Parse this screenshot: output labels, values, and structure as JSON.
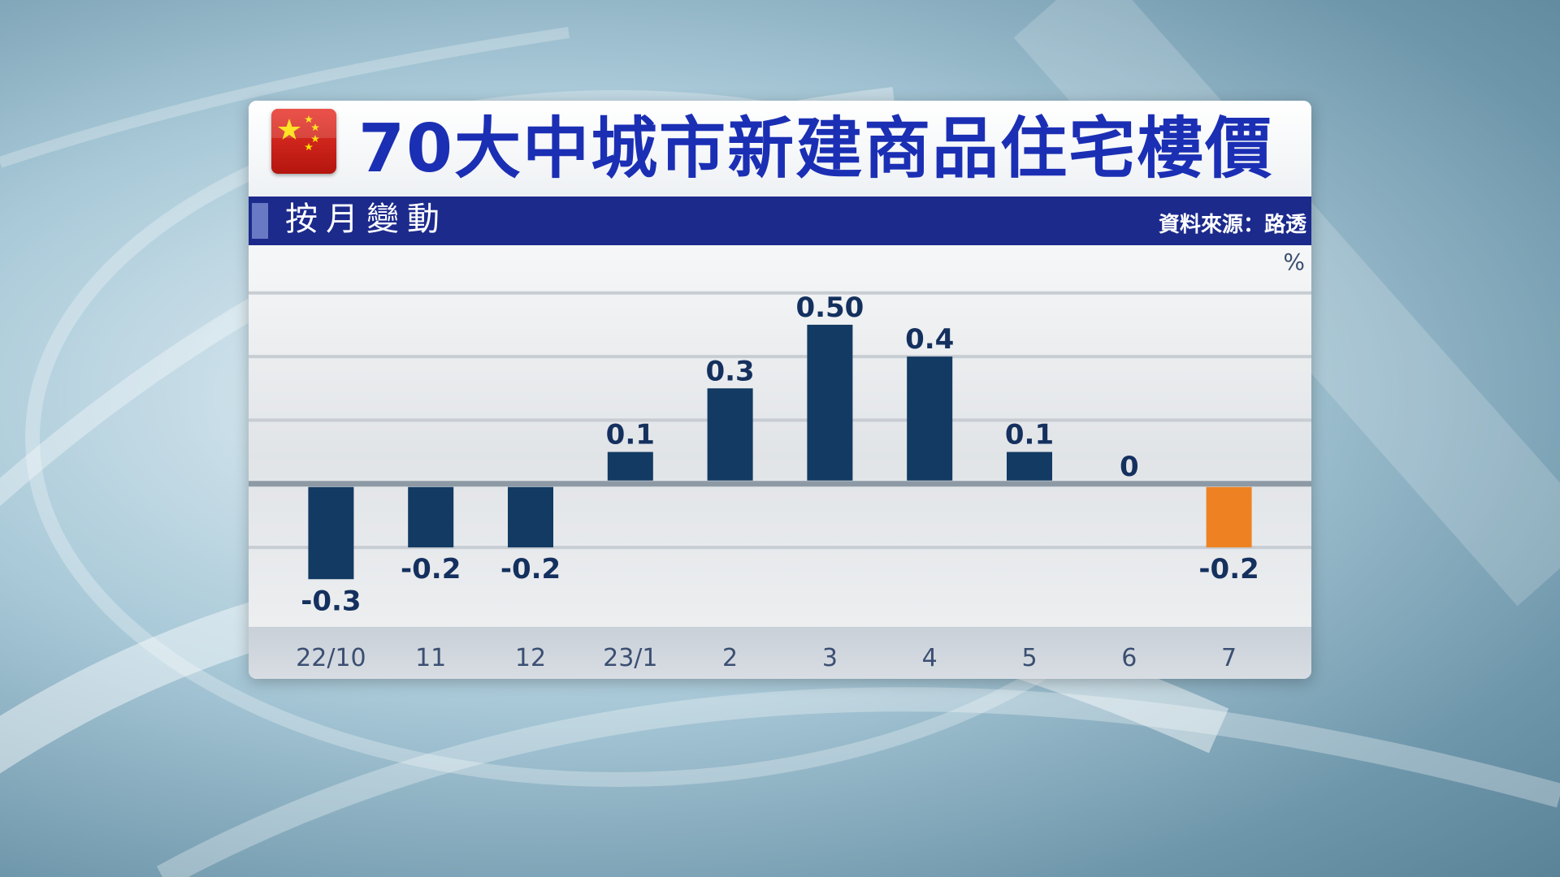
{
  "title": "70大中城市新建商品住宅樓價",
  "subtitle": "按月變動",
  "source": "資料來源：路透",
  "unit": "%",
  "colors": {
    "title": "#1b2fb4",
    "bar": "#123a63",
    "highlight": "#ee8222",
    "subbar": "#1c2a8c"
  },
  "icons": {
    "flag": "china-flag-icon"
  },
  "chart_data": {
    "type": "bar",
    "categories": [
      "22/10",
      "11",
      "12",
      "23/1",
      "2",
      "3",
      "4",
      "5",
      "6",
      "7"
    ],
    "values": [
      -0.3,
      -0.2,
      -0.2,
      0.1,
      0.3,
      0.5,
      0.4,
      0.1,
      0,
      -0.2
    ],
    "value_labels": [
      "-0.3",
      "-0.2",
      "-0.2",
      "0.1",
      "0.3",
      "0.50",
      "0.4",
      "0.1",
      "0",
      "-0.2"
    ],
    "highlight_index": 9,
    "ylabel": "%",
    "ylim": [
      -0.45,
      0.75
    ],
    "grid": true,
    "legend": "none"
  }
}
